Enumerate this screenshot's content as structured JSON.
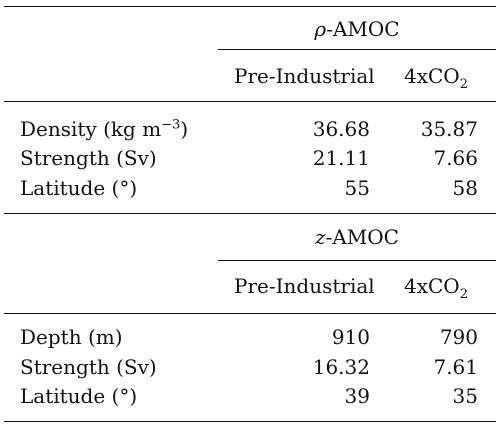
{
  "sections": [
    {
      "group_title_symbol": "ρ",
      "group_title_rest": "-AMOC",
      "columns": [
        "Pre-Industrial",
        "4xCO",
        "2"
      ],
      "rows": [
        {
          "label": "Density (kg m",
          "label_sup": "−3",
          "label_end": ")",
          "values": [
            "36.68",
            "35.87"
          ]
        },
        {
          "label": "Strength (Sv)",
          "label_sup": "",
          "label_end": "",
          "values": [
            "21.11",
            "7.66"
          ]
        },
        {
          "label": "Latitude (°)",
          "label_sup": "",
          "label_end": "",
          "values": [
            "55",
            "58"
          ]
        }
      ]
    },
    {
      "group_title_symbol": "z",
      "group_title_rest": "-AMOC",
      "columns": [
        "Pre-Industrial",
        "4xCO",
        "2"
      ],
      "rows": [
        {
          "label": "Depth (m)",
          "label_sup": "",
          "label_end": "",
          "values": [
            "910",
            "790"
          ]
        },
        {
          "label": "Strength (Sv)",
          "label_sup": "",
          "label_end": "",
          "values": [
            "16.32",
            "7.61"
          ]
        },
        {
          "label": "Latitude (°)",
          "label_sup": "",
          "label_end": "",
          "values": [
            "39",
            "35"
          ]
        }
      ]
    }
  ]
}
